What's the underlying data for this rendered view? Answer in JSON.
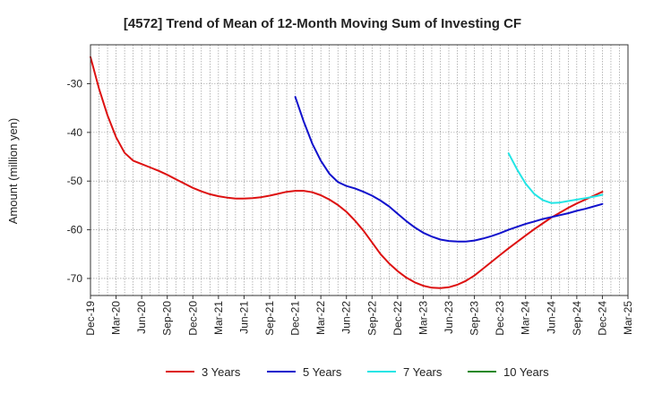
{
  "chart_data": {
    "type": "line",
    "title": "[4572]  Trend of Mean of 12-Month Moving Sum of Investing CF",
    "xlabel": "",
    "ylabel": "Amount (million yen)",
    "x_tick_labels": [
      "Dec-19",
      "Mar-20",
      "Jun-20",
      "Sep-20",
      "Dec-20",
      "Mar-21",
      "Jun-21",
      "Sep-21",
      "Dec-21",
      "Mar-22",
      "Jun-22",
      "Sep-22",
      "Dec-22",
      "Mar-23",
      "Jun-23",
      "Sep-23",
      "Dec-23",
      "Mar-24",
      "Jun-24",
      "Sep-24",
      "Dec-24",
      "Mar-25"
    ],
    "x_months_per_tick": 3,
    "xlim": [
      0,
      63
    ],
    "yticks": [
      -30,
      -40,
      -50,
      -60,
      -70
    ],
    "ylim": [
      -73.5,
      -22
    ],
    "grid": true,
    "legend_position": "bottom",
    "colors": {
      "3 Years": "#dd1111",
      "5 Years": "#1111cc",
      "7 Years": "#22e5e5",
      "10 Years": "#228822",
      "grid": "#888888",
      "axis": "#333333"
    },
    "series": [
      {
        "name": "3 Years",
        "x": [
          0,
          1,
          2,
          3,
          4,
          5,
          6,
          7,
          8,
          9,
          10,
          11,
          12,
          13,
          14,
          15,
          16,
          17,
          18,
          19,
          20,
          21,
          22,
          23,
          24,
          25,
          26,
          27,
          28,
          29,
          30,
          31,
          32,
          33,
          34,
          35,
          36,
          37,
          38,
          39,
          40,
          41,
          42,
          43,
          44,
          45,
          46,
          47,
          48,
          49,
          50,
          51,
          52,
          53,
          54,
          55,
          56,
          57,
          58,
          59,
          60
        ],
        "values": [
          -24.5,
          -31,
          -36.5,
          -41,
          -44.2,
          -45.8,
          -46.5,
          -47.2,
          -47.9,
          -48.7,
          -49.6,
          -50.5,
          -51.4,
          -52.1,
          -52.7,
          -53.1,
          -53.4,
          -53.6,
          -53.6,
          -53.5,
          -53.3,
          -53,
          -52.6,
          -52.2,
          -52,
          -52,
          -52.3,
          -52.9,
          -53.8,
          -54.9,
          -56.3,
          -58.1,
          -60.2,
          -62.6,
          -65,
          -66.9,
          -68.5,
          -69.8,
          -70.8,
          -71.5,
          -71.9,
          -72,
          -71.8,
          -71.3,
          -70.5,
          -69.4,
          -68,
          -66.6,
          -65.2,
          -63.8,
          -62.5,
          -61.2,
          -59.9,
          -58.7,
          -57.5,
          -56.5,
          -55.5,
          -54.6,
          -53.8,
          -53,
          -52.2
        ]
      },
      {
        "name": "5 Years",
        "x": [
          24,
          25,
          26,
          27,
          28,
          29,
          30,
          31,
          32,
          33,
          34,
          35,
          36,
          37,
          38,
          39,
          40,
          41,
          42,
          43,
          44,
          45,
          46,
          47,
          48,
          49,
          50,
          51,
          52,
          53,
          54,
          55,
          56,
          57,
          58,
          59,
          60
        ],
        "values": [
          -32.7,
          -37.8,
          -42.3,
          -45.8,
          -48.5,
          -50.2,
          -51,
          -51.5,
          -52.2,
          -53,
          -54,
          -55.2,
          -56.7,
          -58.2,
          -59.5,
          -60.6,
          -61.4,
          -62,
          -62.3,
          -62.4,
          -62.4,
          -62.2,
          -61.8,
          -61.3,
          -60.7,
          -60,
          -59.4,
          -58.8,
          -58.3,
          -57.8,
          -57.4,
          -57,
          -56.6,
          -56.1,
          -55.7,
          -55.2,
          -54.7
        ]
      },
      {
        "name": "7 Years",
        "x": [
          49,
          50,
          51,
          52,
          53,
          54,
          55,
          56,
          57,
          58,
          59,
          60
        ],
        "values": [
          -44.3,
          -47.6,
          -50.5,
          -52.6,
          -53.9,
          -54.5,
          -54.4,
          -54.1,
          -53.8,
          -53.5,
          -53.2,
          -52.8
        ]
      },
      {
        "name": "10 Years",
        "x": [],
        "values": []
      }
    ]
  }
}
